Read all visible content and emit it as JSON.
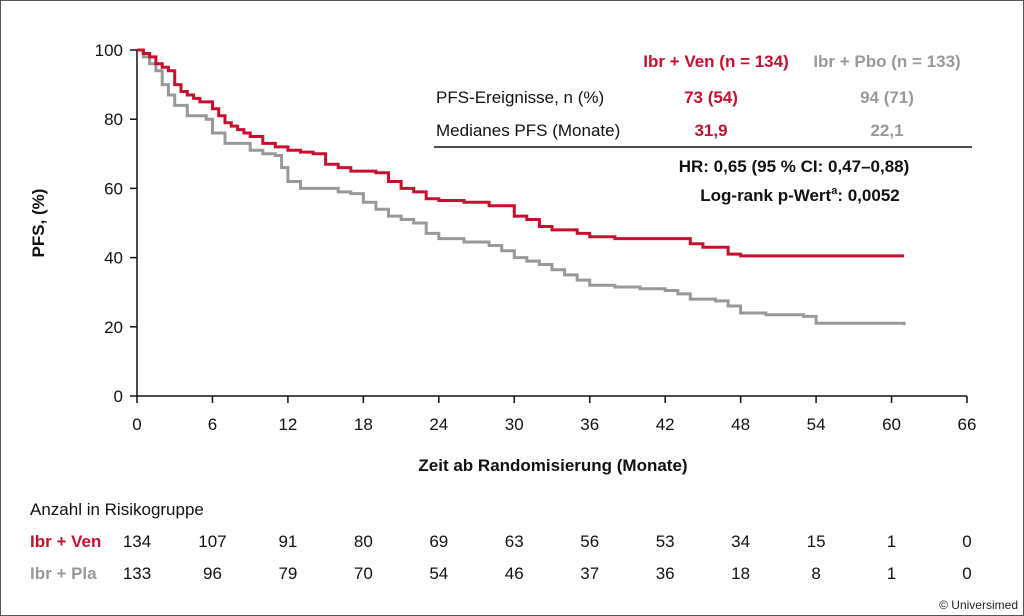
{
  "chart_data": {
    "type": "line",
    "ylabel": "PFS, (%)",
    "xlabel": "Zeit ab Randomisierung (Monate)",
    "xlim": [
      0,
      66
    ],
    "ylim": [
      0,
      100
    ],
    "xticks": [
      0,
      6,
      12,
      18,
      24,
      30,
      36,
      42,
      48,
      54,
      60,
      66
    ],
    "yticks": [
      0,
      20,
      40,
      60,
      80,
      100
    ],
    "colors": {
      "ibr_ven": "#c8102e",
      "ibr_pbo": "#999999"
    },
    "series": [
      {
        "name": "Ibr + Ven (n = 134)",
        "color": "#c8102e",
        "x": [
          0,
          0.5,
          1,
          1.5,
          2,
          2.5,
          3,
          3.5,
          4,
          4.5,
          5,
          6,
          6.5,
          7,
          7.5,
          8,
          8.5,
          9,
          10,
          11,
          12,
          13,
          14,
          15,
          16,
          17,
          18,
          19,
          20,
          21,
          22,
          23,
          24,
          26,
          28,
          30,
          31,
          32,
          33,
          35,
          36,
          38,
          40,
          42,
          44,
          45,
          47,
          48,
          50,
          54,
          61
        ],
        "y": [
          100,
          99,
          98,
          96,
          95,
          94,
          90,
          88,
          87,
          86,
          85,
          83,
          81,
          79,
          78,
          77,
          76,
          75,
          73,
          72,
          71,
          70.5,
          70,
          67,
          66,
          65,
          65,
          64.5,
          62,
          60,
          59,
          57,
          56.5,
          56,
          55,
          52,
          51,
          49,
          48,
          47,
          46,
          45.5,
          45.5,
          45.5,
          44,
          43,
          41,
          40.5,
          40.5,
          40.5,
          40.5
        ]
      },
      {
        "name": "Ibr + Pbo (n = 133)",
        "color": "#999999",
        "x": [
          0,
          0.5,
          1,
          1.5,
          2,
          2.5,
          3,
          4,
          5,
          5.5,
          6,
          7,
          8,
          9,
          10,
          11,
          11.5,
          12,
          13,
          15,
          16,
          17,
          18,
          19,
          20,
          21,
          22,
          23,
          24,
          26,
          28,
          29,
          30,
          31,
          32,
          33,
          34,
          35,
          36,
          38,
          40,
          42,
          43,
          44,
          46,
          47,
          48,
          50,
          53,
          54,
          61
        ],
        "y": [
          100,
          98,
          96,
          94,
          90,
          87,
          84,
          81,
          81,
          80,
          76,
          73,
          73,
          71,
          70,
          69.5,
          66,
          62,
          60,
          60,
          59,
          58.5,
          56,
          54,
          52,
          51,
          50,
          47,
          45.5,
          44.5,
          43.5,
          42,
          40,
          39,
          38,
          36.5,
          35,
          33.5,
          32,
          31.5,
          31,
          30.5,
          29.5,
          28,
          27.5,
          26,
          24,
          23.5,
          23,
          21,
          20.5
        ]
      }
    ],
    "legend_table": {
      "headers": [
        "Ibr + Ven (n = 134)",
        "Ibr + Pbo (n = 133)"
      ],
      "rows": [
        {
          "label": "PFS-Ereignisse, n (%)",
          "values": [
            "73 (54)",
            "94 (71)"
          ]
        },
        {
          "label": "Medianes PFS (Monate)",
          "values": [
            "31,9",
            "22,1"
          ]
        }
      ],
      "hr_text": "HR: 0,65 (95 % CI: 0,47–0,88)",
      "logrank_prefix": "Log-rank p-Wert",
      "logrank_sup": "a",
      "logrank_suffix": ": 0,0052"
    },
    "risk_table": {
      "title": "Anzahl in Risikogruppe",
      "rows": [
        {
          "label": "Ibr + Ven",
          "color": "#c8102e",
          "values": [
            "134",
            "107",
            "91",
            "80",
            "69",
            "63",
            "56",
            "53",
            "34",
            "15",
            "1",
            "0"
          ]
        },
        {
          "label": "Ibr + Pla",
          "color": "#999999",
          "values": [
            "133",
            "96",
            "79",
            "70",
            "54",
            "46",
            "37",
            "36",
            "18",
            "8",
            "1",
            "0"
          ]
        }
      ]
    }
  },
  "copyright": "© Universimed"
}
